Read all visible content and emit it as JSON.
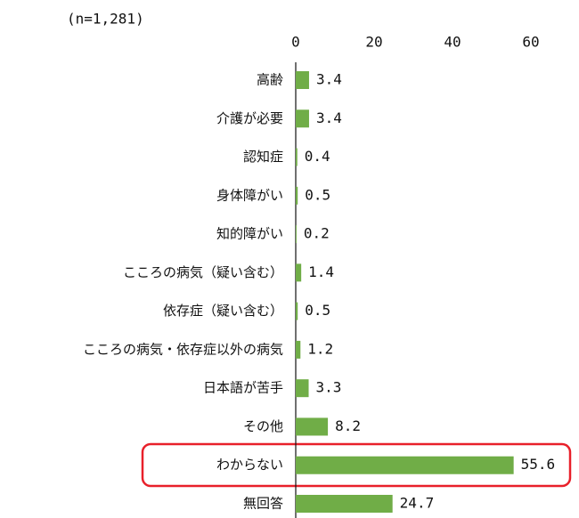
{
  "chart_data": {
    "type": "bar",
    "orientation": "horizontal",
    "subtitle": "(n=1,281)",
    "categories": [
      "高齢",
      "介護が必要",
      "認知症",
      "身体障がい",
      "知的障がい",
      "こころの病気（疑い含む）",
      "依存症（疑い含む）",
      "こころの病気・依存症以外の病気",
      "日本語が苦手",
      "その他",
      "わからない",
      "無回答"
    ],
    "values": [
      3.4,
      3.4,
      0.4,
      0.5,
      0.2,
      1.4,
      0.5,
      1.2,
      3.3,
      8.2,
      55.6,
      24.7
    ],
    "color": "#70ad47",
    "xlim": [
      0,
      70
    ],
    "xticks": [
      0,
      20,
      40,
      60
    ],
    "grid": false
  }
}
